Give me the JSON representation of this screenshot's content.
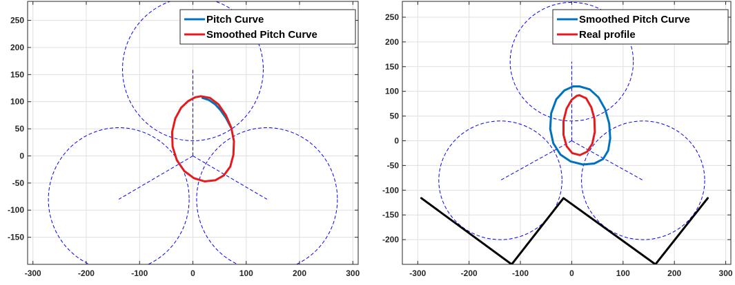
{
  "chart_data": [
    {
      "type": "line",
      "xlim": [
        -310,
        310
      ],
      "ylim": [
        -200,
        285
      ],
      "xticks": [
        -300,
        -200,
        -100,
        0,
        100,
        200,
        300
      ],
      "yticks": [
        -150,
        -100,
        -50,
        0,
        50,
        100,
        150,
        200,
        250
      ],
      "grid": true,
      "legend_position": "top-right",
      "legend": [
        "Pitch Curve",
        "Smoothed Pitch Curve"
      ],
      "series": [
        {
          "name": "Pitch Curve",
          "color": "#0072BD",
          "x": [
            18,
            30,
            42,
            52,
            62,
            71
          ],
          "y": [
            107,
            103,
            95,
            84,
            70,
            53
          ]
        },
        {
          "name": "Smoothed Pitch Curve",
          "color": "#E41A1C",
          "x": [
            15,
            32,
            48,
            62,
            72,
            77,
            76,
            70,
            58,
            42,
            22,
            2,
            -16,
            -30,
            -38,
            -39,
            -33,
            -22,
            -9,
            4,
            15
          ],
          "y": [
            110,
            107,
            95,
            75,
            52,
            27,
            2,
            -20,
            -36,
            -45,
            -47,
            -41,
            -28,
            -8,
            17,
            44,
            69,
            89,
            101,
            108,
            110
          ]
        }
      ],
      "reference_circles": {
        "color": "#0000FF",
        "style": "dashed",
        "radius": 132,
        "centers": [
          [
            0,
            160
          ],
          [
            -139,
            -80
          ],
          [
            139,
            -80
          ]
        ]
      },
      "reference_spokes": {
        "color": "#0000FF",
        "style": "dashed",
        "from": [
          0,
          0
        ],
        "to": [
          [
            0,
            160
          ],
          [
            -139,
            -80
          ],
          [
            139,
            -80
          ]
        ]
      }
    },
    {
      "type": "line",
      "xlim": [
        -330,
        310
      ],
      "ylim": [
        -250,
        282
      ],
      "xticks": [
        -300,
        -200,
        -100,
        0,
        100,
        200,
        300
      ],
      "yticks": [
        -200,
        -150,
        -100,
        -50,
        0,
        50,
        100,
        150,
        200,
        250
      ],
      "grid": true,
      "legend_position": "top-right",
      "legend": [
        "Smoothed Pitch Curve",
        "Real profile"
      ],
      "series": [
        {
          "name": "Smoothed Pitch Curve",
          "color": "#0072BD",
          "x": [
            15,
            35,
            52,
            65,
            73,
            75,
            71,
            61,
            44,
            22,
            -2,
            -22,
            -36,
            -42,
            -40,
            -30,
            -14,
            3,
            15
          ],
          "y": [
            110,
            104,
            88,
            64,
            35,
            5,
            -20,
            -37,
            -46,
            -48,
            -42,
            -28,
            -5,
            24,
            56,
            84,
            102,
            110,
            110
          ]
        },
        {
          "name": "Real profile",
          "color": "#E41A1C",
          "x": [
            15,
            28,
            38,
            44,
            45,
            40,
            30,
            16,
            1,
            -10,
            -16,
            -16,
            -10,
            0,
            10,
            15
          ],
          "y": [
            92,
            86,
            68,
            45,
            18,
            -6,
            -22,
            -29,
            -25,
            -11,
            12,
            40,
            65,
            83,
            91,
            92
          ]
        },
        {
          "name": "",
          "color": "#000000",
          "x": [
            -293,
            -117,
            -16,
            163,
            265
          ],
          "y": [
            -116,
            -250,
            -116,
            -250,
            -116
          ]
        }
      ],
      "reference_circles": {
        "color": "#0000FF",
        "style": "dashed",
        "radius": 120,
        "centers": [
          [
            0,
            160
          ],
          [
            -139,
            -80
          ],
          [
            139,
            -80
          ]
        ]
      },
      "reference_spokes": {
        "color": "#0000FF",
        "style": "dashed",
        "from": [
          0,
          0
        ],
        "to": [
          [
            0,
            160
          ],
          [
            -139,
            -80
          ],
          [
            139,
            -80
          ]
        ]
      }
    }
  ]
}
